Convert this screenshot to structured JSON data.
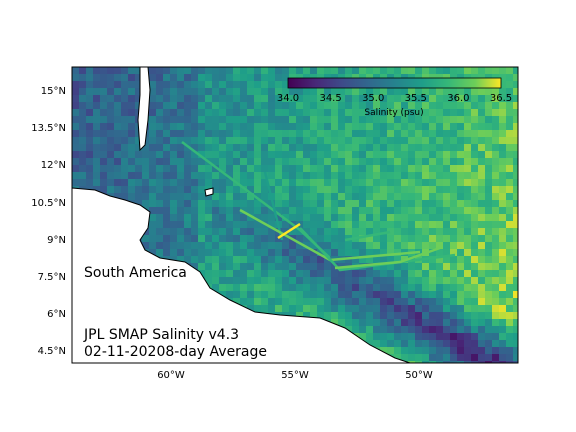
{
  "map": {
    "region_label": "South America",
    "title_line1": "JPL SMAP Salinity v4.3",
    "title_line2": "02-11-20208-day Average",
    "lat_ticks": [
      "15°N",
      "13.5°N",
      "12°N",
      "10.5°N",
      "9°N",
      "7.5°N",
      "6°N",
      "4.5°N"
    ],
    "lon_ticks": [
      "60°W",
      "55°W",
      "50°W"
    ],
    "colorbar": {
      "label": "Salinity (psu)",
      "ticks": [
        "34.0",
        "34.5",
        "35.0",
        "35.5",
        "36.0",
        "36.5"
      ],
      "range": [
        34.0,
        36.5
      ],
      "colormap": "viridis"
    },
    "extent": {
      "lon": [
        -64,
        -46
      ],
      "lat": [
        4,
        16
      ]
    },
    "colors": {
      "low": "#440154",
      "mid": "#21918c",
      "high": "#fde725",
      "land": "#ffffff",
      "coast": "#000000"
    }
  }
}
